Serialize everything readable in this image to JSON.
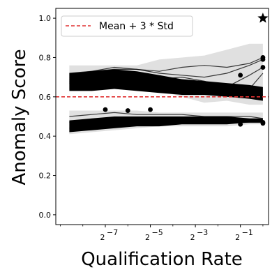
{
  "chart_data": {
    "type": "line",
    "xlabel": "Qualification Rate",
    "ylabel": "Anomaly Score",
    "x_scale": "log2",
    "x_ticks": [
      {
        "exp": -7,
        "base": "2",
        "sup": "−7"
      },
      {
        "exp": -5,
        "base": "2",
        "sup": "−5"
      },
      {
        "exp": -3,
        "base": "2",
        "sup": "−3"
      },
      {
        "exp": -1,
        "base": "2",
        "sup": "−1"
      }
    ],
    "y_ticks": [
      "0.0",
      "0.2",
      "0.4",
      "0.6",
      "0.8",
      "1.0"
    ],
    "xlim_log2": [
      -9.2,
      0.25
    ],
    "ylim": [
      -0.05,
      1.05
    ],
    "x_log2_points": [
      -8.6,
      -7.6,
      -6.6,
      -5.6,
      -4.6,
      -3.6,
      -2.6,
      -1.6,
      -0.6,
      0
    ],
    "threshold": {
      "value": 0.6,
      "label": "Mean + 3 * Std",
      "color": "#e03030"
    },
    "legend": {
      "position": "upper-left"
    },
    "upper_band": {
      "top": [
        0.72,
        0.73,
        0.74,
        0.73,
        0.71,
        0.69,
        0.68,
        0.67,
        0.66,
        0.65
      ],
      "bottom": [
        0.63,
        0.63,
        0.64,
        0.63,
        0.62,
        0.61,
        0.61,
        0.6,
        0.59,
        0.58
      ]
    },
    "lower_band": {
      "top": [
        0.48,
        0.49,
        0.5,
        0.5,
        0.5,
        0.5,
        0.5,
        0.5,
        0.49,
        0.49
      ],
      "bottom": [
        0.42,
        0.43,
        0.44,
        0.45,
        0.45,
        0.46,
        0.46,
        0.46,
        0.47,
        0.47
      ]
    },
    "series": [
      {
        "values": [
          0.71,
          0.73,
          0.74,
          0.74,
          0.73,
          0.75,
          0.76,
          0.75,
          0.77,
          0.8
        ]
      },
      {
        "values": [
          0.72,
          0.73,
          0.75,
          0.74,
          0.72,
          0.71,
          0.7,
          0.72,
          0.76,
          0.79
        ]
      },
      {
        "values": [
          0.7,
          0.72,
          0.73,
          0.71,
          0.69,
          0.7,
          0.68,
          0.65,
          0.71,
          0.75
        ]
      },
      {
        "values": [
          0.69,
          0.71,
          0.72,
          0.7,
          0.68,
          0.66,
          0.64,
          0.62,
          0.64,
          0.72
        ]
      },
      {
        "values": [
          0.68,
          0.69,
          0.7,
          0.68,
          0.66,
          0.65,
          0.64,
          0.63,
          0.62,
          0.61
        ]
      },
      {
        "values": [
          0.67,
          0.67,
          0.68,
          0.67,
          0.65,
          0.64,
          0.63,
          0.62,
          0.61,
          0.6
        ]
      },
      {
        "values": [
          0.5,
          0.51,
          0.52,
          0.51,
          0.51,
          0.51,
          0.5,
          0.5,
          0.5,
          0.49
        ]
      },
      {
        "values": [
          0.47,
          0.48,
          0.49,
          0.49,
          0.49,
          0.49,
          0.49,
          0.48,
          0.48,
          0.48
        ]
      },
      {
        "values": [
          0.44,
          0.45,
          0.46,
          0.47,
          0.47,
          0.47,
          0.47,
          0.47,
          0.47,
          0.47
        ]
      }
    ],
    "shaded_regions": [
      {
        "top": [
          0.76,
          0.76,
          0.76,
          0.76,
          0.79,
          0.8,
          0.81,
          0.84,
          0.87,
          0.87
        ],
        "bottom": [
          0.64,
          0.64,
          0.64,
          0.64,
          0.63,
          0.6,
          0.57,
          0.58,
          0.56,
          0.56
        ]
      },
      {
        "top": [
          0.53,
          0.53,
          0.53,
          0.53,
          0.52,
          0.52,
          0.52,
          0.52,
          0.52,
          0.52
        ],
        "bottom": [
          0.41,
          0.42,
          0.43,
          0.44,
          0.45,
          0.45,
          0.45,
          0.45,
          0.46,
          0.46
        ]
      }
    ],
    "markers": [
      {
        "x": -7.0,
        "y": 0.535
      },
      {
        "x": -6.0,
        "y": 0.53
      },
      {
        "x": -5.0,
        "y": 0.535
      },
      {
        "x": -1.0,
        "y": 0.71
      },
      {
        "x": -1.0,
        "y": 0.46
      },
      {
        "x": 0,
        "y": 0.8
      },
      {
        "x": 0,
        "y": 0.79
      },
      {
        "x": 0,
        "y": 0.75
      },
      {
        "x": 0,
        "y": 0.47
      },
      {
        "x": 0,
        "y": 0.465
      }
    ],
    "star": {
      "x": 0,
      "y": 1.0
    }
  }
}
